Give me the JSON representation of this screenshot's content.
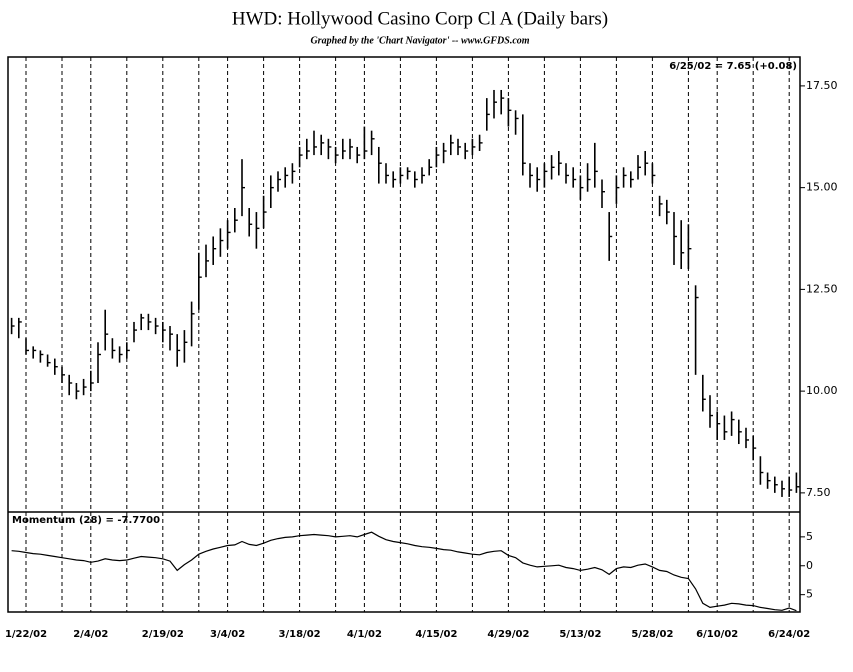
{
  "chart_data": [
    {
      "type": "ohlc",
      "title": "HWD:  Hollywood Casino Corp Cl A  (Daily bars)",
      "subtitle": "Graphed by the 'Chart Navigator'  --  www.GFDS.com",
      "annotation": "6/25/02 = 7.65 (+0.08)",
      "color": "#000000",
      "grid": true,
      "categories": [
        null,
        null,
        "1/22/02",
        null,
        null,
        null,
        null,
        null,
        null,
        null,
        null,
        "2/4/02",
        null,
        null,
        null,
        null,
        null,
        null,
        null,
        null,
        null,
        "2/19/02",
        null,
        null,
        null,
        null,
        null,
        null,
        null,
        null,
        "3/4/02",
        null,
        null,
        null,
        null,
        null,
        null,
        null,
        null,
        null,
        "3/18/02",
        null,
        null,
        null,
        null,
        null,
        null,
        null,
        null,
        "4/1/02",
        null,
        null,
        null,
        null,
        null,
        null,
        null,
        null,
        null,
        "4/15/02",
        null,
        null,
        null,
        null,
        null,
        null,
        null,
        null,
        null,
        "4/29/02",
        null,
        null,
        null,
        null,
        null,
        null,
        null,
        null,
        null,
        "5/13/02",
        null,
        null,
        null,
        null,
        null,
        null,
        null,
        null,
        null,
        "5/28/02",
        null,
        null,
        null,
        null,
        null,
        null,
        null,
        null,
        "6/10/02",
        null,
        null,
        null,
        null,
        null,
        null,
        null,
        null,
        null,
        "6/24/02",
        null
      ],
      "high": [
        11.8,
        11.8,
        11.3,
        11.1,
        11.0,
        10.9,
        10.8,
        10.6,
        10.4,
        10.2,
        10.3,
        10.5,
        11.2,
        12.0,
        11.3,
        11.1,
        11.2,
        11.7,
        11.9,
        11.9,
        11.8,
        11.7,
        11.6,
        11.4,
        11.5,
        12.2,
        13.4,
        13.6,
        13.8,
        14.0,
        14.2,
        14.5,
        15.7,
        14.5,
        14.4,
        14.8,
        15.3,
        15.4,
        15.5,
        15.6,
        16.0,
        16.2,
        16.4,
        16.3,
        16.2,
        16.0,
        16.2,
        16.2,
        16.0,
        16.5,
        16.4,
        16.0,
        15.6,
        15.4,
        15.5,
        15.5,
        15.4,
        15.5,
        15.7,
        16.0,
        16.1,
        16.3,
        16.2,
        16.1,
        16.2,
        16.3,
        17.2,
        17.4,
        17.4,
        17.2,
        16.9,
        16.8,
        15.6,
        15.5,
        15.6,
        15.8,
        15.9,
        15.6,
        15.5,
        15.3,
        15.6,
        16.1,
        15.2,
        14.4,
        15.3,
        15.5,
        15.4,
        15.8,
        15.9,
        15.6,
        14.8,
        14.7,
        14.4,
        14.2,
        14.1,
        12.6,
        10.4,
        9.9,
        9.5,
        9.4,
        9.5,
        9.3,
        9.1,
        8.9,
        8.4,
        8.0,
        7.9,
        7.8,
        7.9,
        8.0
      ],
      "low": [
        11.4,
        11.3,
        10.9,
        10.8,
        10.7,
        10.6,
        10.4,
        10.2,
        9.9,
        9.8,
        9.9,
        10.0,
        10.2,
        11.0,
        10.8,
        10.7,
        10.8,
        11.2,
        11.5,
        11.5,
        11.4,
        11.2,
        11.0,
        10.6,
        10.7,
        11.1,
        12.0,
        12.8,
        13.1,
        13.3,
        13.5,
        13.9,
        14.3,
        13.8,
        13.5,
        14.0,
        14.5,
        14.9,
        15.0,
        15.1,
        15.5,
        15.7,
        15.8,
        15.8,
        15.7,
        15.6,
        15.7,
        15.7,
        15.6,
        15.7,
        15.8,
        15.1,
        15.1,
        15.0,
        15.1,
        15.2,
        15.0,
        15.1,
        15.3,
        15.5,
        15.6,
        15.8,
        15.8,
        15.7,
        15.8,
        15.9,
        16.4,
        16.7,
        16.8,
        16.5,
        16.3,
        15.3,
        15.0,
        14.9,
        15.0,
        15.2,
        15.3,
        15.1,
        15.0,
        14.7,
        14.9,
        15.0,
        14.5,
        13.2,
        14.6,
        15.0,
        15.0,
        15.2,
        15.3,
        15.1,
        14.3,
        14.1,
        13.1,
        13.0,
        13.0,
        10.4,
        9.5,
        9.1,
        8.8,
        8.8,
        8.9,
        8.7,
        8.6,
        8.3,
        7.7,
        7.6,
        7.5,
        7.4,
        7.4,
        7.5
      ],
      "close": [
        11.6,
        11.7,
        11.0,
        11.0,
        10.9,
        10.7,
        10.6,
        10.4,
        10.2,
        10.0,
        10.1,
        10.2,
        10.9,
        11.4,
        11.0,
        10.9,
        11.0,
        11.5,
        11.8,
        11.7,
        11.6,
        11.5,
        11.4,
        11.0,
        11.2,
        11.9,
        12.8,
        13.2,
        13.5,
        13.7,
        13.9,
        14.2,
        15.0,
        14.1,
        14.0,
        14.4,
        15.0,
        15.2,
        15.3,
        15.4,
        15.8,
        15.9,
        16.0,
        16.1,
        16.0,
        15.8,
        15.9,
        16.0,
        15.8,
        15.9,
        16.2,
        15.6,
        15.3,
        15.2,
        15.3,
        15.4,
        15.2,
        15.3,
        15.5,
        15.8,
        15.9,
        16.1,
        16.0,
        15.9,
        16.0,
        16.1,
        16.8,
        17.1,
        17.2,
        16.9,
        16.7,
        15.6,
        15.3,
        15.2,
        15.4,
        15.5,
        15.6,
        15.3,
        15.2,
        15.0,
        15.2,
        15.4,
        14.9,
        13.8,
        15.0,
        15.3,
        15.2,
        15.5,
        15.6,
        15.3,
        14.6,
        14.4,
        13.8,
        13.4,
        13.5,
        12.3,
        9.8,
        9.4,
        9.2,
        9.0,
        9.3,
        9.0,
        8.8,
        8.6,
        8.0,
        7.8,
        7.7,
        7.6,
        7.57,
        7.65
      ],
      "ylim": [
        7.03,
        18.21
      ],
      "yticks": [
        {
          "value": 7.5,
          "label": "7.50"
        },
        {
          "value": 10,
          "label": "10.00"
        },
        {
          "value": 12.5,
          "label": "12.50"
        },
        {
          "value": 15,
          "label": "15.00"
        },
        {
          "value": 17.5,
          "label": "17.50"
        }
      ]
    },
    {
      "type": "line",
      "label": "Momentum (28) = -7.7700",
      "color": "#000000",
      "values": [
        2.6,
        2.5,
        2.3,
        2.1,
        2.0,
        1.8,
        1.6,
        1.4,
        1.2,
        1.0,
        0.9,
        0.6,
        0.8,
        1.2,
        1.0,
        0.9,
        1.0,
        1.3,
        1.6,
        1.5,
        1.4,
        1.2,
        0.8,
        -0.8,
        0.2,
        1.0,
        2.0,
        2.5,
        2.9,
        3.2,
        3.5,
        3.6,
        4.2,
        3.7,
        3.5,
        3.9,
        4.4,
        4.7,
        4.9,
        5.0,
        5.2,
        5.3,
        5.4,
        5.3,
        5.2,
        5.0,
        5.1,
        5.2,
        5.0,
        5.4,
        5.8,
        5.1,
        4.5,
        4.2,
        4.0,
        3.8,
        3.5,
        3.3,
        3.2,
        3.0,
        2.8,
        2.7,
        2.4,
        2.2,
        2.0,
        1.9,
        2.3,
        2.5,
        2.6,
        1.8,
        1.4,
        0.5,
        0.1,
        -0.2,
        -0.1,
        0.0,
        0.1,
        -0.3,
        -0.5,
        -0.8,
        -0.6,
        -0.3,
        -0.7,
        -1.5,
        -0.5,
        -0.2,
        -0.3,
        0.1,
        0.3,
        -0.2,
        -0.8,
        -1.0,
        -1.6,
        -2.0,
        -2.2,
        -4.0,
        -6.5,
        -7.2,
        -7.0,
        -6.8,
        -6.5,
        -6.6,
        -6.8,
        -6.9,
        -7.2,
        -7.4,
        -7.6,
        -7.7,
        -7.3,
        -7.77
      ],
      "ylim": [
        -8,
        9.3
      ],
      "yticks": [
        {
          "value": -5,
          "label": "5"
        },
        0,
        5
      ]
    }
  ]
}
